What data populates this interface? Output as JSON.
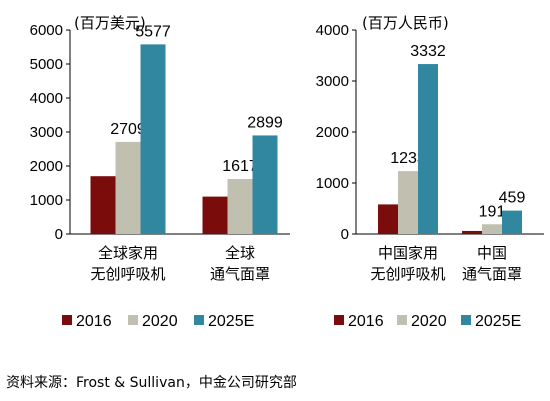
{
  "colors": {
    "2016": "#7b0c0c",
    "2020": "#c1bfb0",
    "2025E": "#31879f"
  },
  "chart_data": [
    {
      "type": "bar",
      "unit": "(百万美元)",
      "ylim": [
        0,
        6000
      ],
      "yticks": [
        "0",
        "1000",
        "2000",
        "3000",
        "4000",
        "5000",
        "6000"
      ],
      "categories": [
        [
          "全球家用",
          "无创呼吸机"
        ],
        [
          "全球",
          "通气面罩"
        ]
      ],
      "series": [
        {
          "name": "2016",
          "values": [
            1700,
            1100
          ],
          "labels": [
            "",
            ""
          ]
        },
        {
          "name": "2020",
          "values": [
            2709,
            1617
          ],
          "labels": [
            "2709",
            "1617"
          ]
        },
        {
          "name": "2025E",
          "values": [
            5577,
            2899
          ],
          "labels": [
            "5577",
            "2899"
          ]
        }
      ],
      "legend": "bottom",
      "grid": false
    },
    {
      "type": "bar",
      "unit": "(百万人民币)",
      "ylim": [
        0,
        4000
      ],
      "yticks": [
        "0",
        "1000",
        "2000",
        "3000",
        "4000"
      ],
      "categories": [
        [
          "中国家用",
          "无创呼吸机"
        ],
        [
          "中国",
          "通气面罩"
        ]
      ],
      "series": [
        {
          "name": "2016",
          "values": [
            580,
            60
          ],
          "labels": [
            "",
            ""
          ]
        },
        {
          "name": "2020",
          "values": [
            1233,
            191
          ],
          "labels": [
            "1233",
            "191"
          ]
        },
        {
          "name": "2025E",
          "values": [
            3332,
            459
          ],
          "labels": [
            "3332",
            "459"
          ]
        }
      ],
      "legend": "bottom",
      "grid": false
    }
  ],
  "source": "资料来源：Frost & Sullivan，中金公司研究部"
}
